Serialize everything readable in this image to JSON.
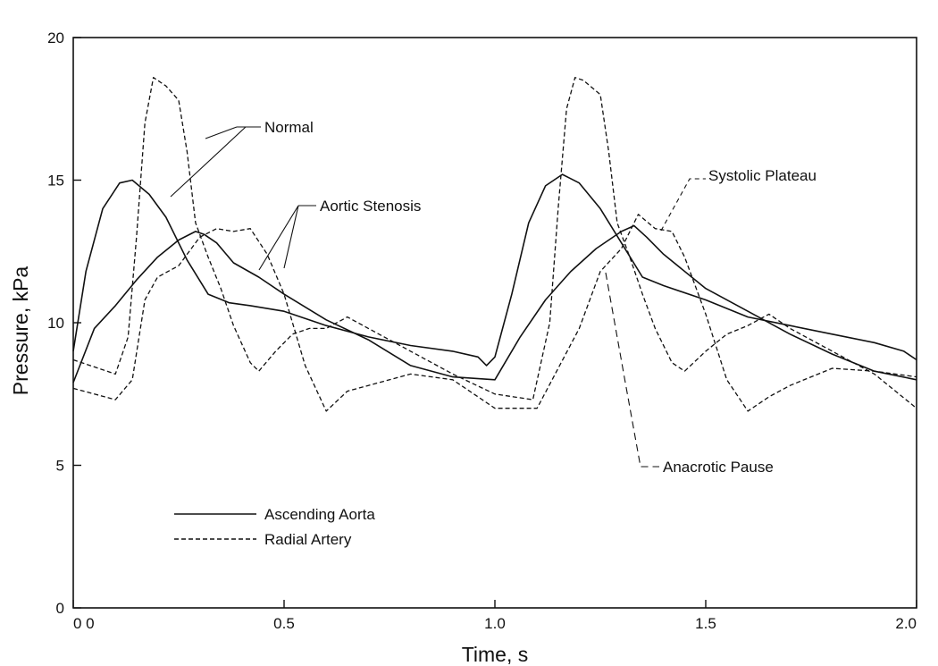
{
  "chart_data": {
    "type": "line",
    "title": "",
    "xlabel": "Time, s",
    "ylabel": "Pressure, kPa",
    "xlim": [
      0,
      2.0
    ],
    "ylim": [
      0,
      20
    ],
    "x_ticks": [
      {
        "value": 0,
        "label": "0 0"
      },
      {
        "value": 0.5,
        "label": "0.5"
      },
      {
        "value": 1.0,
        "label": "1.0"
      },
      {
        "value": 1.5,
        "label": "1.5"
      },
      {
        "value": 2.0,
        "label": "2.0"
      }
    ],
    "y_ticks": [
      {
        "value": 0,
        "label": "0"
      },
      {
        "value": 5,
        "label": "5"
      },
      {
        "value": 10,
        "label": "10"
      },
      {
        "value": 15,
        "label": "15"
      },
      {
        "value": 20,
        "label": "20"
      }
    ],
    "grid": false,
    "legend_position": "bottom-left",
    "legend": [
      {
        "label": "Ascending Aorta",
        "style": "solid"
      },
      {
        "label": "Radial Artery",
        "style": "dashed"
      }
    ],
    "series": [
      {
        "style": "solid",
        "x": [
          0,
          0.03,
          0.07,
          0.11,
          0.14,
          0.18,
          0.22,
          0.27,
          0.32,
          0.37,
          0.42,
          0.5,
          0.6,
          0.7,
          0.8,
          0.9,
          0.96,
          0.98,
          1.0,
          1.04,
          1.08,
          1.12,
          1.16,
          1.2,
          1.25,
          1.3,
          1.35,
          1.4,
          1.5,
          1.6,
          1.7,
          1.8,
          1.9,
          1.97,
          2.0
        ],
        "y": [
          9.0,
          11.8,
          14.0,
          14.9,
          15.0,
          14.5,
          13.7,
          12.2,
          11.0,
          10.7,
          10.6,
          10.4,
          9.9,
          9.5,
          9.2,
          9.0,
          8.8,
          8.5,
          8.8,
          11.0,
          13.5,
          14.8,
          15.2,
          14.9,
          14.0,
          12.8,
          11.6,
          11.3,
          10.8,
          10.2,
          9.9,
          9.6,
          9.3,
          9.0,
          8.7
        ]
      },
      {
        "style": "solid",
        "x": [
          0,
          0.05,
          0.1,
          0.15,
          0.2,
          0.25,
          0.29,
          0.31,
          0.34,
          0.38,
          0.44,
          0.5,
          0.6,
          0.7,
          0.8,
          0.9,
          1.0,
          1.06,
          1.12,
          1.18,
          1.24,
          1.3,
          1.33,
          1.36,
          1.4,
          1.5,
          1.6,
          1.7,
          1.8,
          1.9,
          2.0
        ],
        "y": [
          7.9,
          9.8,
          10.6,
          11.5,
          12.3,
          12.9,
          13.2,
          13.1,
          12.8,
          12.1,
          11.6,
          11.0,
          10.1,
          9.4,
          8.5,
          8.1,
          8.0,
          9.5,
          10.8,
          11.8,
          12.6,
          13.2,
          13.4,
          13.0,
          12.4,
          11.2,
          10.4,
          9.6,
          8.9,
          8.3,
          8.0
        ]
      },
      {
        "style": "dashed",
        "x": [
          0,
          0.1,
          0.13,
          0.15,
          0.17,
          0.19,
          0.22,
          0.25,
          0.27,
          0.29,
          0.32,
          0.35,
          0.38,
          0.42,
          0.44,
          0.48,
          0.52,
          0.56,
          0.6,
          0.65,
          0.7,
          0.8,
          0.9,
          1.0,
          1.09,
          1.13,
          1.15,
          1.17,
          1.19,
          1.21,
          1.25,
          1.27,
          1.29,
          1.32,
          1.35,
          1.38,
          1.42,
          1.45,
          1.5,
          1.55,
          1.6,
          1.65,
          1.7,
          1.8,
          1.9,
          2.0
        ],
        "y": [
          8.7,
          8.2,
          9.5,
          13.0,
          17.0,
          18.6,
          18.3,
          17.8,
          16.0,
          13.5,
          12.3,
          11.2,
          9.9,
          8.6,
          8.3,
          9.0,
          9.6,
          9.8,
          9.8,
          10.2,
          9.8,
          9.0,
          8.2,
          7.5,
          7.3,
          10.0,
          14.0,
          17.5,
          18.6,
          18.5,
          18.0,
          16.0,
          13.5,
          12.3,
          11.0,
          9.8,
          8.6,
          8.3,
          9.0,
          9.6,
          9.9,
          10.3,
          9.8,
          9.0,
          8.2,
          7.0
        ]
      },
      {
        "style": "dashed",
        "x": [
          0,
          0.1,
          0.14,
          0.17,
          0.2,
          0.25,
          0.3,
          0.34,
          0.38,
          0.42,
          0.46,
          0.5,
          0.55,
          0.6,
          0.65,
          0.7,
          0.8,
          0.9,
          1.0,
          1.1,
          1.2,
          1.25,
          1.3,
          1.34,
          1.38,
          1.42,
          1.45,
          1.5,
          1.55,
          1.6,
          1.65,
          1.7,
          1.8,
          1.9,
          2.0
        ],
        "y": [
          7.7,
          7.3,
          8.0,
          10.8,
          11.6,
          12.0,
          13.0,
          13.3,
          13.2,
          13.3,
          12.4,
          11.0,
          8.5,
          6.9,
          7.6,
          7.8,
          8.2,
          8.0,
          7.0,
          7.0,
          9.8,
          11.8,
          12.6,
          13.8,
          13.3,
          13.2,
          12.3,
          10.3,
          8.0,
          6.9,
          7.4,
          7.8,
          8.4,
          8.3,
          8.1
        ]
      }
    ],
    "annotations": [
      {
        "text": "Normal"
      },
      {
        "text": "Aortic Stenosis"
      },
      {
        "text": "Systolic Plateau"
      },
      {
        "text": "Anacrotic Pause"
      }
    ]
  }
}
